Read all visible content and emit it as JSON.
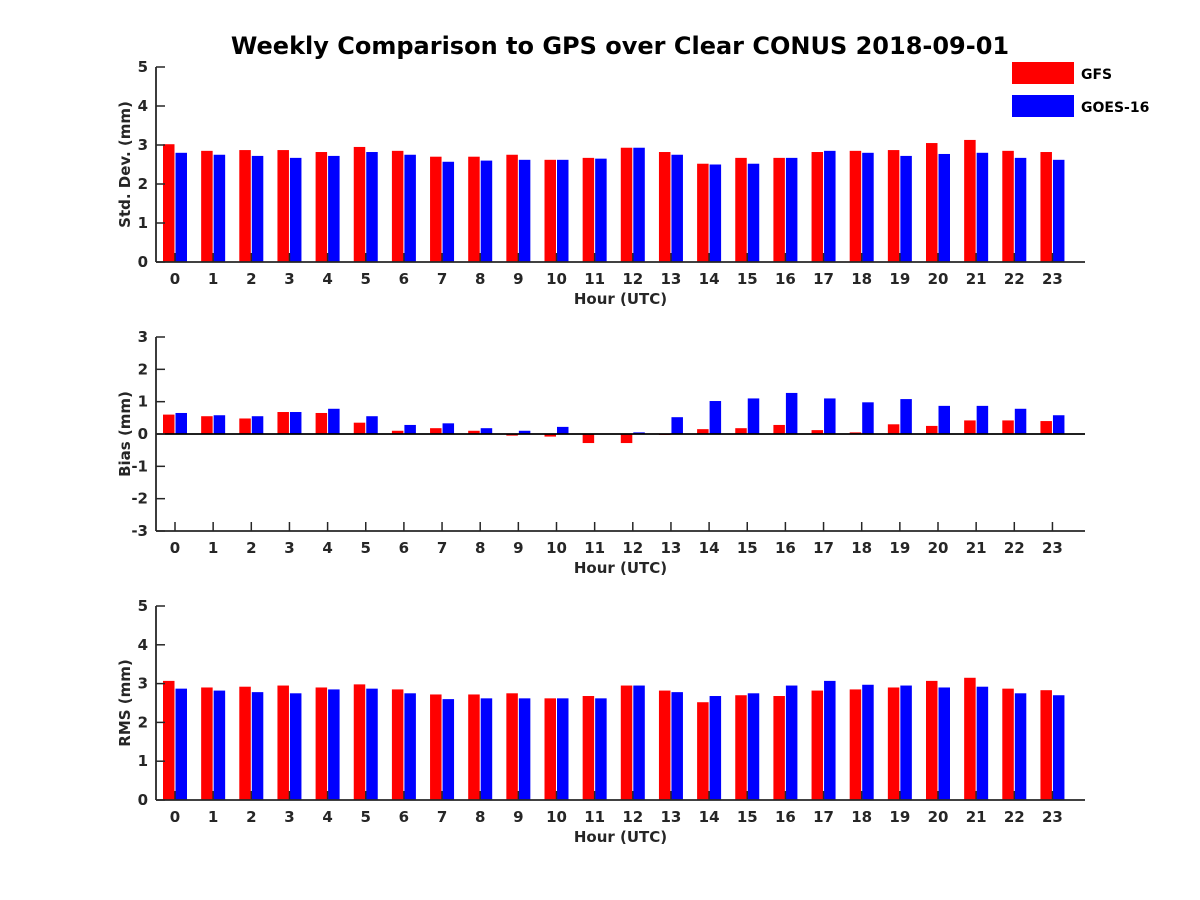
{
  "title": "Weekly Comparison to GPS over Clear CONUS 2018-09-01",
  "colors": {
    "GFS": "#ff0000",
    "GOES-16": "#0000ff"
  },
  "legend": {
    "placement": "top-right",
    "items": [
      "GFS",
      "GOES-16"
    ]
  },
  "chart_data": [
    {
      "type": "bar",
      "title": "Weekly Comparison to GPS over Clear CONUS 2018-09-01",
      "xlabel": "Hour (UTC)",
      "ylabel": "Std. Dev. (mm)",
      "ylim": [
        0,
        5
      ],
      "yticks": [
        "0",
        "1",
        "2",
        "3",
        "4",
        "5"
      ],
      "categories": [
        "0",
        "1",
        "2",
        "3",
        "4",
        "5",
        "6",
        "7",
        "8",
        "9",
        "10",
        "11",
        "12",
        "13",
        "14",
        "15",
        "16",
        "17",
        "18",
        "19",
        "20",
        "21",
        "22",
        "23"
      ],
      "series": [
        {
          "name": "GFS",
          "values": [
            3.02,
            2.85,
            2.87,
            2.87,
            2.82,
            2.95,
            2.85,
            2.7,
            2.7,
            2.75,
            2.62,
            2.67,
            2.93,
            2.82,
            2.52,
            2.67,
            2.67,
            2.82,
            2.85,
            2.87,
            3.05,
            3.13,
            2.85,
            2.82
          ]
        },
        {
          "name": "GOES-16",
          "values": [
            2.8,
            2.75,
            2.72,
            2.67,
            2.72,
            2.82,
            2.75,
            2.57,
            2.6,
            2.62,
            2.62,
            2.65,
            2.93,
            2.75,
            2.5,
            2.52,
            2.67,
            2.85,
            2.8,
            2.72,
            2.77,
            2.8,
            2.67,
            2.62
          ]
        }
      ]
    },
    {
      "type": "bar",
      "xlabel": "Hour (UTC)",
      "ylabel": "Bias (mm)",
      "ylim": [
        -3,
        3
      ],
      "yticks": [
        "-3",
        "-2",
        "-1",
        "0",
        "1",
        "2",
        "3"
      ],
      "categories": [
        "0",
        "1",
        "2",
        "3",
        "4",
        "5",
        "6",
        "7",
        "8",
        "9",
        "10",
        "11",
        "12",
        "13",
        "14",
        "15",
        "16",
        "17",
        "18",
        "19",
        "20",
        "21",
        "22",
        "23"
      ],
      "series": [
        {
          "name": "GFS",
          "values": [
            0.6,
            0.55,
            0.48,
            0.68,
            0.65,
            0.35,
            0.1,
            0.18,
            0.1,
            -0.05,
            -0.08,
            -0.28,
            -0.28,
            -0.03,
            0.15,
            0.18,
            0.28,
            0.12,
            0.05,
            0.3,
            0.25,
            0.42,
            0.42,
            0.4
          ]
        },
        {
          "name": "GOES-16",
          "values": [
            0.65,
            0.58,
            0.55,
            0.68,
            0.78,
            0.55,
            0.28,
            0.33,
            0.18,
            0.1,
            0.22,
            0.0,
            0.05,
            0.52,
            1.02,
            1.1,
            1.27,
            1.1,
            0.98,
            1.08,
            0.87,
            0.87,
            0.78,
            0.58
          ]
        }
      ]
    },
    {
      "type": "bar",
      "xlabel": "Hour (UTC)",
      "ylabel": "RMS (mm)",
      "ylim": [
        0,
        5
      ],
      "yticks": [
        "0",
        "1",
        "2",
        "3",
        "4",
        "5"
      ],
      "categories": [
        "0",
        "1",
        "2",
        "3",
        "4",
        "5",
        "6",
        "7",
        "8",
        "9",
        "10",
        "11",
        "12",
        "13",
        "14",
        "15",
        "16",
        "17",
        "18",
        "19",
        "20",
        "21",
        "22",
        "23"
      ],
      "series": [
        {
          "name": "GFS",
          "values": [
            3.07,
            2.9,
            2.92,
            2.95,
            2.9,
            2.98,
            2.85,
            2.72,
            2.72,
            2.75,
            2.62,
            2.68,
            2.95,
            2.82,
            2.52,
            2.7,
            2.68,
            2.82,
            2.85,
            2.9,
            3.07,
            3.15,
            2.87,
            2.83
          ]
        },
        {
          "name": "GOES-16",
          "values": [
            2.87,
            2.82,
            2.78,
            2.75,
            2.85,
            2.87,
            2.75,
            2.6,
            2.62,
            2.62,
            2.62,
            2.62,
            2.95,
            2.78,
            2.68,
            2.75,
            2.95,
            3.07,
            2.97,
            2.95,
            2.9,
            2.92,
            2.75,
            2.7
          ]
        }
      ]
    }
  ]
}
